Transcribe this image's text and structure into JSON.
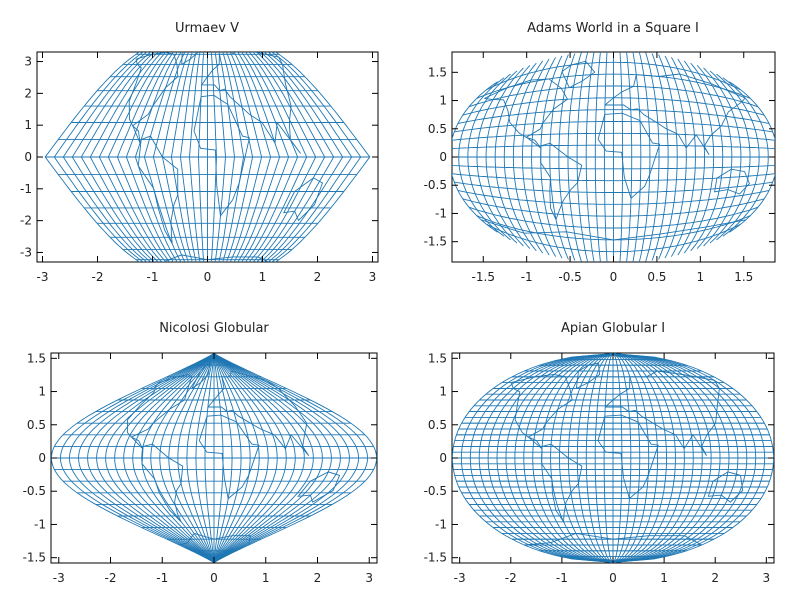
{
  "chart_data": [
    {
      "type": "line",
      "title": "Urmaev V",
      "xticks": [
        -3,
        -2,
        -1,
        0,
        1,
        2,
        3
      ],
      "yticks": [
        -3,
        -2,
        -1,
        0,
        1,
        2,
        3
      ],
      "xlim": [
        -3.1,
        3.1
      ],
      "ylim": [
        -3.3,
        3.3
      ],
      "grid": false,
      "shape": "urmaev",
      "shape_params": {
        "half_width": 2.95,
        "max_y": 3.15
      }
    },
    {
      "type": "line",
      "title": "Adams World in a Square I",
      "xticks": [
        -1.5,
        -1,
        -0.5,
        0,
        0.5,
        1,
        1.5
      ],
      "yticks": [
        -1.5,
        -1,
        -0.5,
        0,
        0.5,
        1,
        1.5
      ],
      "xlim": [
        -1.86,
        1.86
      ],
      "ylim": [
        -1.86,
        1.86
      ],
      "grid": false,
      "shape": "square",
      "shape_params": {
        "half_size": 1.85
      }
    },
    {
      "type": "line",
      "title": "Nicolosi Globular",
      "xticks": [
        -3,
        -2,
        -1,
        0,
        1,
        2,
        3
      ],
      "yticks": [
        -1.5,
        -1,
        -0.5,
        0,
        0.5,
        1,
        1.5
      ],
      "xlim": [
        -3.15,
        3.15
      ],
      "ylim": [
        -1.58,
        1.58
      ],
      "grid": false,
      "shape": "nicolosi",
      "shape_params": {
        "half_width": 3.1416,
        "max_y": 1.5708
      }
    },
    {
      "type": "line",
      "title": "Apian Globular I",
      "xticks": [
        -3,
        -2,
        -1,
        0,
        1,
        2,
        3
      ],
      "yticks": [
        -1.5,
        -1,
        -0.5,
        0,
        0.5,
        1,
        1.5
      ],
      "xlim": [
        -3.15,
        3.15
      ],
      "ylim": [
        -1.58,
        1.58
      ],
      "grid": false,
      "shape": "apian",
      "shape_params": {
        "half_width": 3.1416,
        "max_y": 1.5708
      }
    }
  ],
  "style": {
    "line_color": "#1f77b4",
    "axis_color": "#000000"
  }
}
